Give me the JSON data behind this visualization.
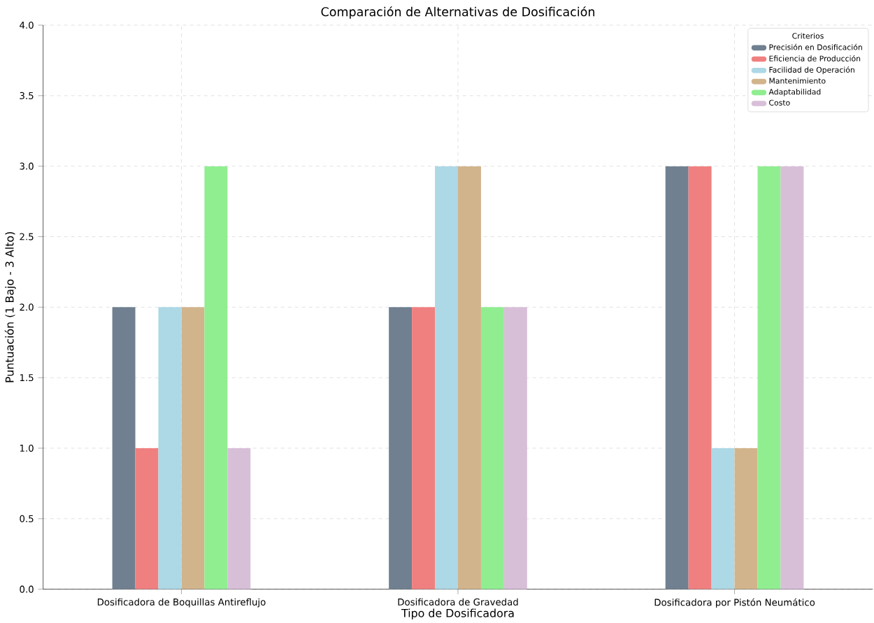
{
  "chart_data": {
    "type": "bar",
    "title": "Comparación de Alternativas de Dosificación",
    "xlabel": "Tipo de Dosificadora",
    "ylabel": "Puntuación (1 Bajo - 3 Alto)",
    "legend_title": "Criterios",
    "categories": [
      "Dosificadora de Boquillas Antireflujo",
      "Dosificadora de Gravedad",
      "Dosificadora por Pistón Neumático"
    ],
    "series": [
      {
        "name": "Precisión en Dosificación",
        "color": "#708090",
        "values": [
          2,
          2,
          3
        ]
      },
      {
        "name": "Eficiencia de Producción",
        "color": "#f08080",
        "values": [
          1,
          2,
          3
        ]
      },
      {
        "name": "Facilidad de Operación",
        "color": "#add8e6",
        "values": [
          2,
          3,
          1
        ]
      },
      {
        "name": "Mantenimiento",
        "color": "#d2b48c",
        "values": [
          2,
          3,
          1
        ]
      },
      {
        "name": "Adaptabilidad",
        "color": "#90ee90",
        "values": [
          3,
          2,
          3
        ]
      },
      {
        "name": "Costo",
        "color": "#d8bfd8",
        "values": [
          1,
          2,
          3
        ]
      }
    ],
    "ylim": [
      0,
      4
    ],
    "yticks": [
      {
        "value": 0,
        "label": "0.0"
      },
      {
        "value": 0.5,
        "label": "0.5"
      },
      {
        "value": 1,
        "label": "1.0"
      },
      {
        "value": 1.5,
        "label": "1.5"
      },
      {
        "value": 2,
        "label": "2.0"
      },
      {
        "value": 2.5,
        "label": "2.5"
      },
      {
        "value": 3,
        "label": "3.0"
      },
      {
        "value": 3.5,
        "label": "3.5"
      },
      {
        "value": 4,
        "label": "4.0"
      }
    ],
    "grid": true,
    "legend": "top right"
  }
}
